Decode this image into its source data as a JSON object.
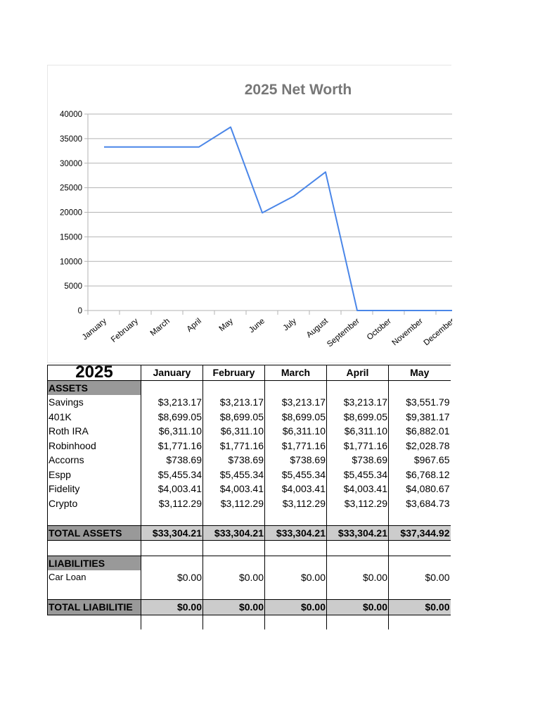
{
  "chart_data": {
    "type": "line",
    "title": "2025 Net Worth",
    "categories": [
      "January",
      "February",
      "March",
      "April",
      "May",
      "June",
      "July",
      "August",
      "September",
      "October",
      "November",
      "December"
    ],
    "series": [
      {
        "values": [
          33304.21,
          33304.21,
          33304.21,
          33304.21,
          37344.92,
          19900,
          23300,
          28200,
          0,
          0,
          0,
          0
        ],
        "color": "#4a86e8"
      }
    ],
    "y_ticks": [
      "0",
      "5000",
      "10000",
      "15000",
      "20000",
      "25000",
      "30000",
      "35000",
      "40000"
    ],
    "ylim": [
      0,
      40000
    ],
    "grid": true,
    "xlabel": "",
    "ylabel": ""
  },
  "table": {
    "year": "2025",
    "months": [
      "January",
      "February",
      "March",
      "April",
      "May"
    ],
    "assets_label": "ASSETS",
    "assets": [
      {
        "name": "Savings",
        "values": [
          "$3,213.17",
          "$3,213.17",
          "$3,213.17",
          "$3,213.17",
          "$3,551.79"
        ]
      },
      {
        "name": "401K",
        "values": [
          "$8,699.05",
          "$8,699.05",
          "$8,699.05",
          "$8,699.05",
          "$9,381.17"
        ]
      },
      {
        "name": "Roth IRA",
        "values": [
          "$6,311.10",
          "$6,311.10",
          "$6,311.10",
          "$6,311.10",
          "$6,882.01"
        ]
      },
      {
        "name": "Robinhood",
        "values": [
          "$1,771.16",
          "$1,771.16",
          "$1,771.16",
          "$1,771.16",
          "$2,028.78"
        ]
      },
      {
        "name": "Accorns",
        "values": [
          "$738.69",
          "$738.69",
          "$738.69",
          "$738.69",
          "$967.65"
        ]
      },
      {
        "name": "Espp",
        "values": [
          "$5,455.34",
          "$5,455.34",
          "$5,455.34",
          "$5,455.34",
          "$6,768.12"
        ]
      },
      {
        "name": "Fidelity",
        "values": [
          "$4,003.41",
          "$4,003.41",
          "$4,003.41",
          "$4,003.41",
          "$4,080.67"
        ]
      },
      {
        "name": "Crypto",
        "values": [
          "$3,112.29",
          "$3,112.29",
          "$3,112.29",
          "$3,112.29",
          "$3,684.73"
        ]
      }
    ],
    "total_assets": {
      "label": "TOTAL ASSETS",
      "values": [
        "$33,304.21",
        "$33,304.21",
        "$33,304.21",
        "$33,304.21",
        "$37,344.92"
      ]
    },
    "liabilities_label": "LIABILITIES",
    "liabilities": [
      {
        "name": "Car Loan",
        "values": [
          "$0.00",
          "$0.00",
          "$0.00",
          "$0.00",
          "$0.00"
        ]
      }
    ],
    "total_liabilities": {
      "label": "TOTAL LIABILITIE",
      "values": [
        "$0.00",
        "$0.00",
        "$0.00",
        "$0.00",
        "$0.00"
      ]
    }
  }
}
